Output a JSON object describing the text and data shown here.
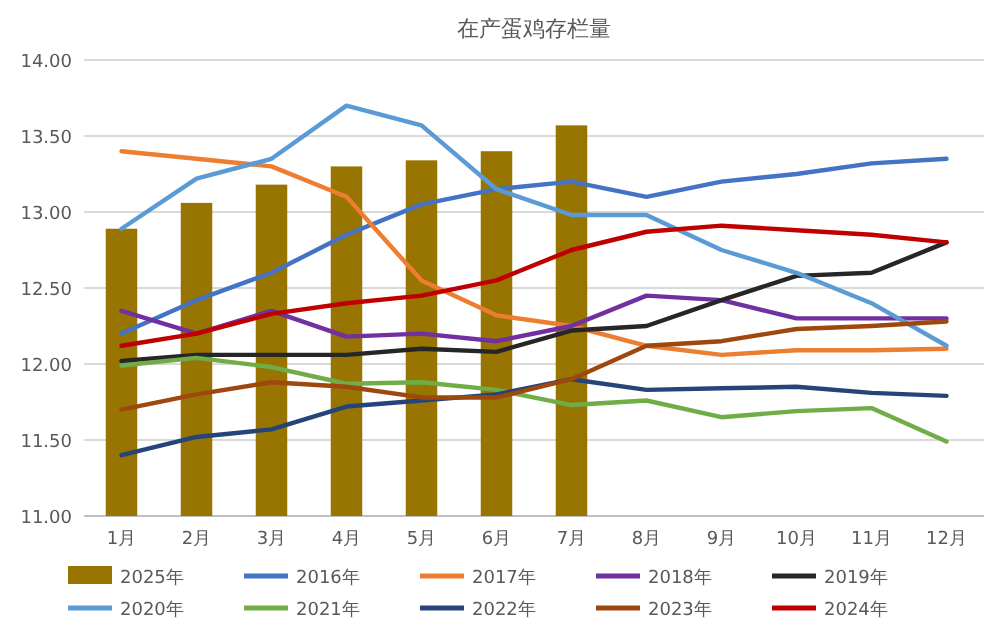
{
  "chart_data": {
    "type": "line",
    "title": "在产蛋鸡存栏量",
    "categories": [
      "1月",
      "2月",
      "3月",
      "4月",
      "5月",
      "6月",
      "7月",
      "8月",
      "9月",
      "10月",
      "11月",
      "12月"
    ],
    "ylim": [
      11.0,
      14.0
    ],
    "yticks": [
      {
        "value": 11,
        "label": "11.00"
      },
      {
        "value": 11.5,
        "label": "11.50"
      },
      {
        "value": 12,
        "label": "12.00"
      },
      {
        "value": 12.5,
        "label": "12.50"
      },
      {
        "value": 13,
        "label": "13.00"
      },
      {
        "value": 13.5,
        "label": "13.50"
      },
      {
        "value": 14,
        "label": "14.00"
      }
    ],
    "grid": "y",
    "legend": "bottom",
    "marker": "none",
    "series": [
      {
        "name": "2025年",
        "type": "bar",
        "color": "#987400",
        "values": [
          12.89,
          13.06,
          13.18,
          13.3,
          13.34,
          13.4,
          13.57,
          null,
          null,
          null,
          null,
          null
        ]
      },
      {
        "name": "2016年",
        "color": "#4472c4",
        "values": [
          12.2,
          12.42,
          12.6,
          12.85,
          13.05,
          13.15,
          13.2,
          13.1,
          13.2,
          13.25,
          13.32,
          13.35
        ]
      },
      {
        "name": "2017年",
        "color": "#ed7d31",
        "values": [
          13.4,
          13.35,
          13.3,
          13.1,
          12.55,
          12.32,
          12.25,
          12.12,
          12.06,
          12.09,
          12.09,
          12.1
        ]
      },
      {
        "name": "2018年",
        "color": "#7030a0",
        "values": [
          12.35,
          12.2,
          12.35,
          12.18,
          12.2,
          12.15,
          12.25,
          12.45,
          12.42,
          12.3,
          12.3,
          12.3
        ]
      },
      {
        "name": "2019年",
        "color": "#262626",
        "values": [
          12.02,
          12.06,
          12.06,
          12.06,
          12.1,
          12.08,
          12.22,
          12.25,
          12.42,
          12.58,
          12.6,
          12.8
        ]
      },
      {
        "name": "2020年",
        "color": "#5b9bd5",
        "values": [
          12.89,
          13.22,
          13.35,
          13.7,
          13.57,
          13.15,
          12.98,
          12.98,
          12.75,
          12.6,
          12.4,
          12.12
        ]
      },
      {
        "name": "2021年",
        "color": "#70ad47",
        "values": [
          11.99,
          12.04,
          11.98,
          11.87,
          11.88,
          11.83,
          11.73,
          11.76,
          11.65,
          11.69,
          11.71,
          11.49
        ]
      },
      {
        "name": "2022年",
        "color": "#264478",
        "values": [
          11.4,
          11.52,
          11.57,
          11.72,
          11.76,
          11.8,
          11.9,
          11.83,
          11.84,
          11.85,
          11.81,
          11.79
        ]
      },
      {
        "name": "2023年",
        "color": "#9e480e",
        "values": [
          11.7,
          11.8,
          11.88,
          11.85,
          11.78,
          11.78,
          11.9,
          12.12,
          12.15,
          12.23,
          12.25,
          12.28
        ]
      },
      {
        "name": "2024年",
        "color": "#c00000",
        "values": [
          12.12,
          12.2,
          12.33,
          12.4,
          12.45,
          12.55,
          12.75,
          12.87,
          12.91,
          12.88,
          12.85,
          12.8
        ]
      }
    ]
  }
}
